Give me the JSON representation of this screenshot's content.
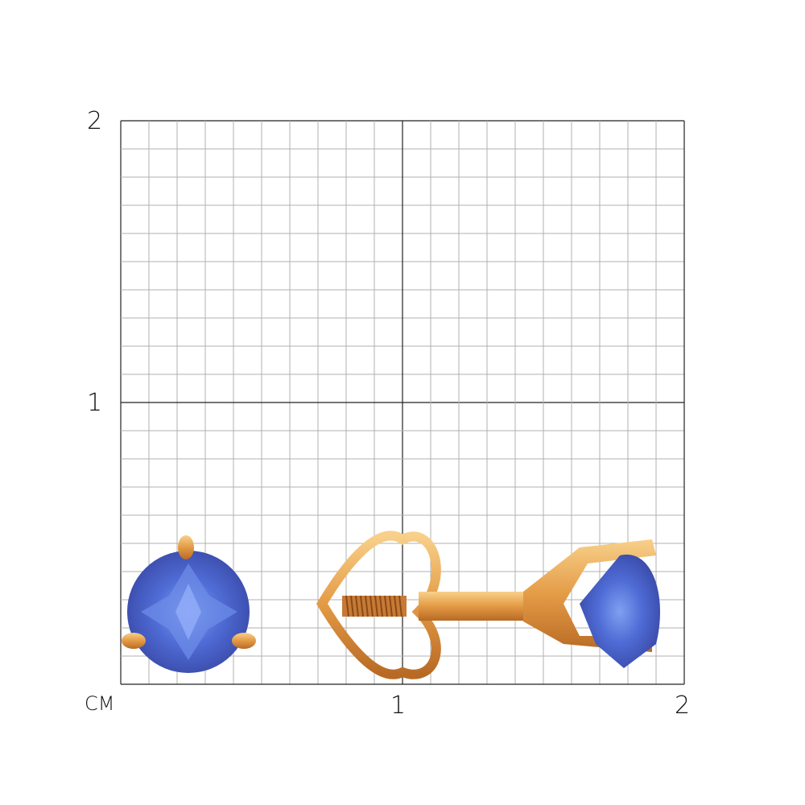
{
  "scale": {
    "unit": "СМ",
    "y_labels": [
      "2",
      "1"
    ],
    "x_labels": [
      "1",
      "2"
    ],
    "range_cm": [
      0,
      2
    ],
    "minor_step_cm": 0.1
  },
  "colors": {
    "grid_minor": "#b0b0b0",
    "grid_major": "#222222",
    "gold": "#e8a54a",
    "gem": "#4a63c9"
  },
  "icons": [
    "stud-earring-front-view",
    "stud-earring-side-view-with-screw-back"
  ]
}
